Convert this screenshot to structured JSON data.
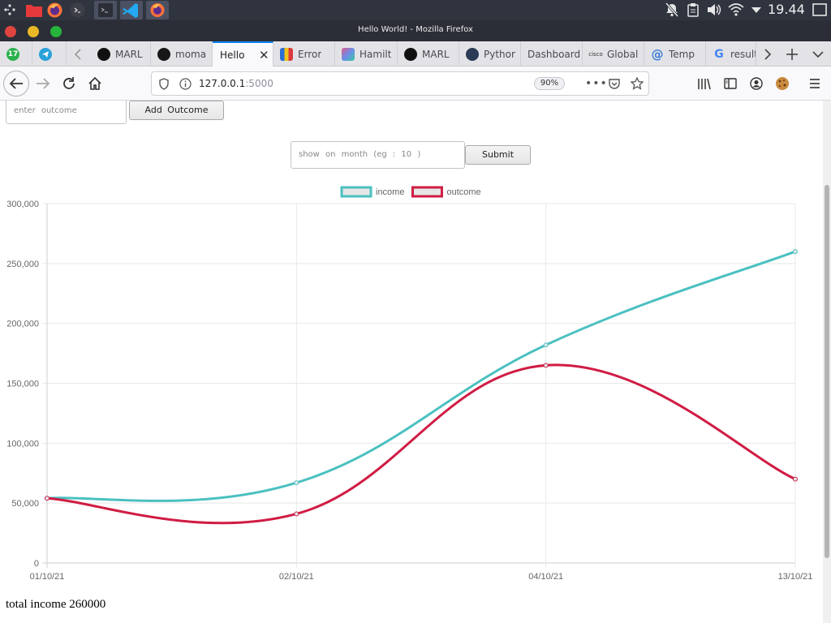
{
  "system_panel": {
    "clock": "19.44",
    "icons": [
      "launcher-icon",
      "files-icon",
      "firefox-icon",
      "terminal-icon",
      "terminal-app",
      "vscode-app",
      "firefox-app"
    ]
  },
  "window": {
    "title": "Hello World! - Mozilla Firefox"
  },
  "tabs": [
    {
      "label": "",
      "icon": "badge-17-icon",
      "badge": "17"
    },
    {
      "label": "",
      "icon": "telegram-icon"
    },
    {
      "label": "MARL",
      "icon": "hacker-icon"
    },
    {
      "label": "moma",
      "icon": "github-icon"
    },
    {
      "label": "Hello",
      "icon": "",
      "active": true
    },
    {
      "label": "Error",
      "icon": "shopping-bag-icon"
    },
    {
      "label": "Hamilt",
      "icon": "gem-icon"
    },
    {
      "label": "MARL",
      "icon": "hacker-icon"
    },
    {
      "label": "Pythor",
      "icon": "python-icon"
    },
    {
      "label": "Dashboard",
      "icon": ""
    },
    {
      "label": "Global",
      "icon": "cisco-icon"
    },
    {
      "label": "Temp",
      "icon": "at-icon"
    },
    {
      "label": "result",
      "icon": "google-icon"
    }
  ],
  "toolbar": {
    "url_host": "127.0.0.1",
    "url_port": ":5000",
    "zoom": "90%"
  },
  "form": {
    "outcome_placeholder": "enter outcome",
    "add_outcome_label": "Add Outcome",
    "month_placeholder": "show on month (eg : 10 )",
    "submit_label": "Submit"
  },
  "chart_data": {
    "type": "line",
    "categories": [
      "01/10/21",
      "02/10/21",
      "04/10/21",
      "13/10/21"
    ],
    "series": [
      {
        "name": "income",
        "values": [
          54000,
          67000,
          182000,
          260000
        ],
        "color": "#4bc0c0"
      },
      {
        "name": "outcome",
        "values": [
          54000,
          41000,
          165000,
          70000
        ],
        "color": "#d01c44"
      }
    ],
    "ylim": [
      0,
      300000
    ],
    "yticks": [
      0,
      50000,
      100000,
      150000,
      200000,
      250000,
      300000
    ],
    "ytick_labels": [
      "0",
      "50,000",
      "100,000",
      "150,000",
      "200,000",
      "250,000",
      "300,000"
    ],
    "grid": true,
    "legend_position": "top-center"
  },
  "footer": {
    "total_income_text": "total income 260000"
  }
}
